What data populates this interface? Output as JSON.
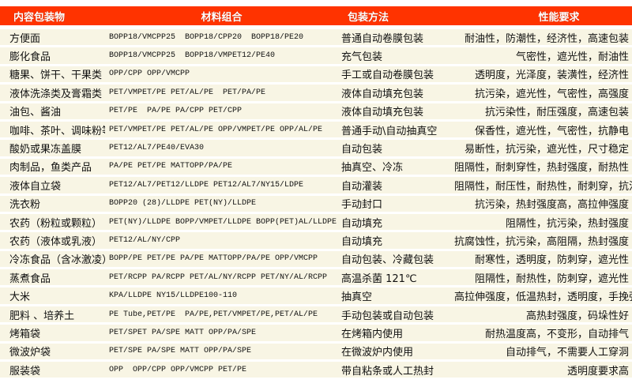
{
  "colors": {
    "header_bg": "#ff3300",
    "row_bg": "#f8f5e4",
    "header_text": "#ffffff"
  },
  "headers": [
    "内容包装物",
    "材料组合",
    "包装方法",
    "性能要求"
  ],
  "rows": [
    [
      "方便面",
      "BOPP18/VMCPP25  BOPP18/CPP20  BOPP18/PE20",
      "普通自动卷膜包装",
      "耐油性，防潮性，经济性，高速包装"
    ],
    [
      "膨化食品",
      "BOPP18/VMCPP25  BOPP18/VMPET12/PE40",
      "充气包装",
      "气密性，遮光性，耐油性"
    ],
    [
      "糖果、饼干、干果类",
      "OPP/CPP OPP/VMCPP",
      "手工或自动卷膜包装",
      "透明度，光泽度，装潢性，经济性"
    ],
    [
      "液体洗涤类及膏霜类",
      "PET/VMPET/PE PET/AL/PE  PET/PA/PE",
      "液体自动填充包装",
      "抗污染，遮光性，气密性，高强度"
    ],
    [
      "油包、酱油",
      "PET/PE  PA/PE PA/CPP PET/CPP",
      "液体自动填充包装",
      "抗污染性，耐压强度，高速包装"
    ],
    [
      "咖啡、茶叶、调味粉等",
      "PET/VMPET/PE PET/AL/PE OPP/VMPET/PE OPP/AL/PE",
      "普通手动\\自动抽真空",
      "保香性，遮光性，气密性，抗静电"
    ],
    [
      "酸奶或果冻盖膜",
      "PET12/AL7/PE40/EVA30",
      "自动包装",
      "易断性，抗污染，遮光性，尺寸稳定"
    ],
    [
      "肉制品，鱼类产品",
      "PA/PE PET/PE MATTOPP/PA/PE",
      "抽真空、冷冻",
      "阻隔性，耐刺穿性，热封强度，耐热性"
    ],
    [
      "液体自立袋",
      "PET12/AL7/PET12/LLDPE PET12/AL7/NY15/LDPE",
      "自动灌装",
      "阻隔性，耐压性，耐热性，耐刺穿，抗污染"
    ],
    [
      "洗衣粉",
      "BOPP20 (28)/LLDPE PET(NY)/LLDPE",
      "手动封口",
      "抗污染，热封强度高，高拉伸强度"
    ],
    [
      "农药（粉粒或颗粒）",
      "PET(NY)/LLDPE BOPP/VMPET/LLDPE BOPP(PET)AL/LLDPE",
      "自动填充",
      "阻隔性，抗污染，热封强度"
    ],
    [
      "农药（液体或乳液）",
      "PET12/AL/NY/CPP",
      "自动填充",
      "抗腐蚀性，抗污染，高阻隔，热封强度"
    ],
    [
      "冷冻食品（含冰激凌）",
      "BOPP/PE PET/PE PA/PE MATTOPP/PA/PE OPP/VMCPP",
      "自动包装、冷藏包装",
      "耐寒性，透明度，防刺穿，遮光性"
    ],
    [
      "蒸煮食品",
      "PET/RCPP PA/RCPP PET/AL/NY/RCPP PET/NY/AL/RCPP",
      "高温杀菌 121℃",
      "阻隔性，耐热性，防刺穿，遮光性"
    ],
    [
      "大米",
      "KPA/LLDPE NY15/LLDPE100-110",
      "抽真空",
      "高拉伸强度，低温热封，透明度，手挽强度高"
    ],
    [
      "肥料 、培养土",
      "PE Tube,PET/PE  PA/PE,PET/VMPET/PE,PET/AL/PE",
      "手动包装或自动包装",
      "高热封强度，码垛性好"
    ],
    [
      "烤箱袋",
      "PET/SPET PA/SPE MATT OPP/PA/SPE",
      "在烤箱内使用",
      "耐热温度高，不变形，自动排气"
    ],
    [
      "微波炉袋",
      "PET/SPE PA/SPE MATT OPP/PA/SPE",
      "在微波炉内使用",
      "自动排气，不需要人工穿洞"
    ],
    [
      "服装袋",
      "OPP  OPP/CPP OPP/VMCPP PET/PE",
      "带自粘条或人工热封",
      "透明度要求高"
    ]
  ]
}
